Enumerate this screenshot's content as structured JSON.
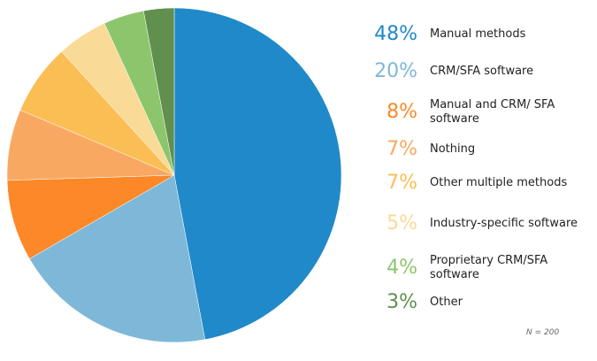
{
  "chart_data": {
    "type": "pie",
    "title": "",
    "start_angle_deg": 0,
    "direction": "clockwise",
    "slices": [
      {
        "label": "Manual methods",
        "value": 48,
        "value_label": "48%",
        "color": "#2089c9"
      },
      {
        "label": "CRM/SFA software",
        "value": 20,
        "value_label": "20%",
        "color": "#7db8d9"
      },
      {
        "label": "Manual and CRM/ SFA software",
        "value": 8,
        "value_label": "8%",
        "color": "#fc8827"
      },
      {
        "label": "Nothing",
        "value": 7,
        "value_label": "7%",
        "color": "#f9a862"
      },
      {
        "label": "Other multiple methods",
        "value": 7,
        "value_label": "7%",
        "color": "#fbbe55"
      },
      {
        "label": "Industry-specific software",
        "value": 5,
        "value_label": "5%",
        "color": "#f9da96"
      },
      {
        "label": "Proprietary CRM/SFA software",
        "value": 4,
        "value_label": "4%",
        "color": "#8dc56c"
      },
      {
        "label": "Other",
        "value": 3,
        "value_label": "3%",
        "color": "#608f4e"
      }
    ],
    "legend_position": "right",
    "annotation": "N = 200"
  }
}
